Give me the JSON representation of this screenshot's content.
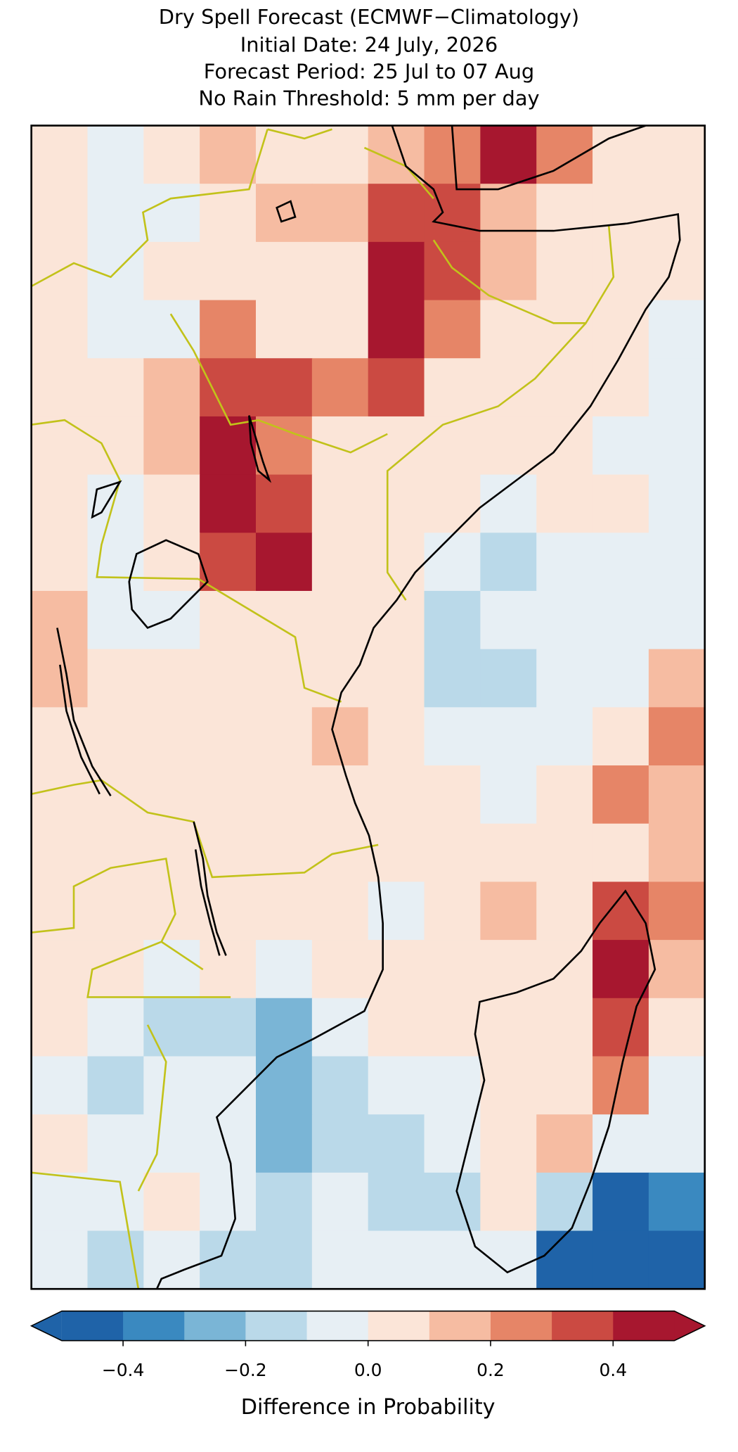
{
  "chart_data": {
    "type": "heatmap",
    "title": "Dry Spell Forecast (ECMWF−Climatology)",
    "subtitles": [
      "Initial Date: 24 July, 2026",
      "Forecast Period: 25 Jul to 07 Aug",
      "No Rain Threshold: 5 mm per day"
    ],
    "values": [
      [
        0.05,
        -0.05,
        0.05,
        0.15,
        0.05,
        0.05,
        0.15,
        0.25,
        0.45,
        0.25,
        0.05,
        0.05
      ],
      [
        0.05,
        -0.05,
        -0.05,
        0.05,
        0.15,
        0.15,
        0.35,
        0.35,
        0.15,
        0.05,
        0.05,
        0.05
      ],
      [
        0.05,
        -0.05,
        0.05,
        0.05,
        0.05,
        0.05,
        0.45,
        0.35,
        0.15,
        0.05,
        0.05,
        0.05
      ],
      [
        0.05,
        -0.05,
        -0.05,
        0.25,
        0.05,
        0.05,
        0.45,
        0.25,
        0.05,
        0.05,
        0.05,
        -0.05
      ],
      [
        0.05,
        0.05,
        0.15,
        0.35,
        0.35,
        0.25,
        0.35,
        0.05,
        0.05,
        0.05,
        0.05,
        -0.05
      ],
      [
        0.05,
        0.05,
        0.15,
        0.45,
        0.25,
        0.05,
        0.05,
        0.05,
        0.05,
        0.05,
        -0.05,
        -0.05
      ],
      [
        0.05,
        -0.05,
        0.05,
        0.45,
        0.35,
        0.05,
        0.05,
        0.05,
        -0.05,
        0.05,
        0.05,
        -0.05
      ],
      [
        0.05,
        -0.05,
        0.05,
        0.35,
        0.45,
        0.05,
        0.05,
        -0.05,
        -0.15,
        -0.05,
        -0.05,
        -0.05
      ],
      [
        0.15,
        -0.05,
        -0.05,
        0.05,
        0.05,
        0.05,
        0.05,
        -0.15,
        -0.05,
        -0.05,
        -0.05,
        -0.05
      ],
      [
        0.15,
        0.05,
        0.05,
        0.05,
        0.05,
        0.05,
        0.05,
        -0.15,
        -0.15,
        -0.05,
        -0.05,
        0.15
      ],
      [
        0.05,
        0.05,
        0.05,
        0.05,
        0.05,
        0.15,
        0.05,
        -0.05,
        -0.05,
        -0.05,
        0.05,
        0.25
      ],
      [
        0.05,
        0.05,
        0.05,
        0.05,
        0.05,
        0.05,
        0.05,
        0.05,
        -0.05,
        0.05,
        0.25,
        0.15
      ],
      [
        0.05,
        0.05,
        0.05,
        0.05,
        0.05,
        0.05,
        0.05,
        0.05,
        0.05,
        0.05,
        0.05,
        0.15
      ],
      [
        0.05,
        0.05,
        0.05,
        0.05,
        0.05,
        0.05,
        -0.05,
        0.05,
        0.15,
        0.05,
        0.35,
        0.25
      ],
      [
        0.05,
        0.05,
        -0.05,
        0.05,
        -0.05,
        0.05,
        0.05,
        0.05,
        0.05,
        0.05,
        0.45,
        0.15
      ],
      [
        0.05,
        -0.05,
        -0.15,
        -0.15,
        -0.25,
        -0.05,
        0.05,
        0.05,
        0.05,
        0.05,
        0.35,
        0.05
      ],
      [
        -0.05,
        -0.15,
        -0.05,
        -0.05,
        -0.25,
        -0.15,
        -0.05,
        -0.05,
        0.05,
        0.05,
        0.25,
        -0.05
      ],
      [
        0.05,
        -0.05,
        -0.05,
        -0.05,
        -0.25,
        -0.15,
        -0.15,
        -0.05,
        0.05,
        0.15,
        -0.05,
        -0.05
      ],
      [
        -0.05,
        -0.05,
        0.05,
        -0.05,
        -0.15,
        -0.05,
        -0.15,
        -0.15,
        0.05,
        -0.15,
        -0.45,
        -0.35
      ],
      [
        -0.05,
        -0.15,
        -0.05,
        -0.15,
        -0.15,
        -0.05,
        -0.05,
        -0.05,
        -0.05,
        -0.45,
        -0.45,
        -0.45
      ]
    ],
    "colorbar": {
      "label": "Difference in Probability",
      "bounds": [
        -0.5,
        -0.4,
        -0.3,
        -0.2,
        -0.1,
        0,
        0.1,
        0.2,
        0.3,
        0.4,
        0.5
      ],
      "colors": [
        "#1f63a8",
        "#3a89c0",
        "#7ab5d6",
        "#bad9e9",
        "#e7eff4",
        "#fbe5d8",
        "#f6bca2",
        "#e68567",
        "#cb4a42",
        "#a7172f"
      ],
      "ticks": [
        {
          "value": -0.4,
          "label": "−0.4"
        },
        {
          "value": -0.2,
          "label": "−0.2"
        },
        {
          "value": 0,
          "label": "0.0"
        },
        0.2,
        0.4
      ],
      "extend": "both"
    }
  }
}
